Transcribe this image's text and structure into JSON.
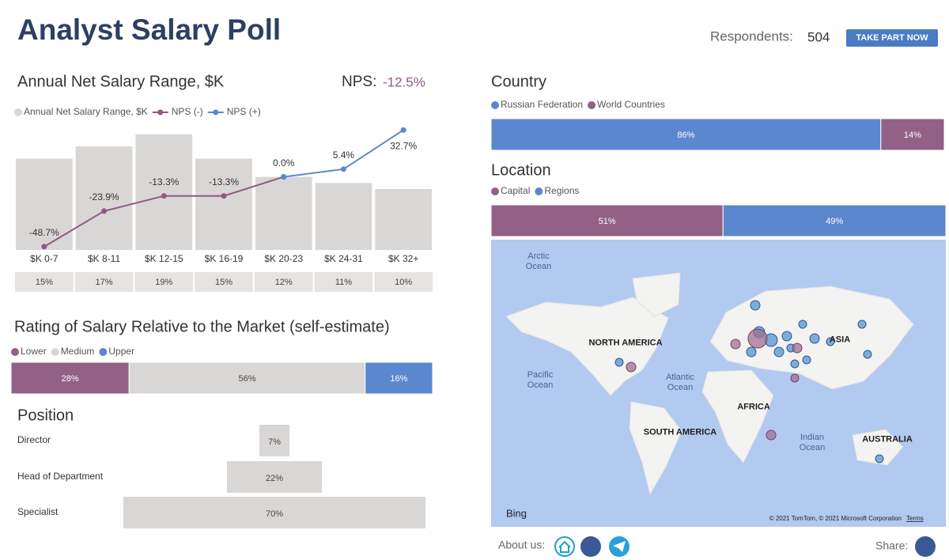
{
  "header": {
    "title": "Analyst Salary Poll",
    "respondents_label": "Respondents:",
    "respondents": "504",
    "button": "TAKE PART NOW"
  },
  "chart_data": [
    {
      "type": "bar-line",
      "title": "Annual Net Salary Range, $K",
      "nps_label": "NPS:",
      "nps": "-12.5%",
      "categories": [
        "$K 0-7",
        "$K 8-11",
        "$K 12-15",
        "$K 16-19",
        "$K 20-23",
        "$K 24-31",
        "$K 32+"
      ],
      "series": [
        {
          "name": "Annual Net Salary Range, $K",
          "color": "#d9d7d6",
          "values": [
            15,
            17,
            19,
            15,
            12,
            11,
            10
          ],
          "value_labels": [
            "15%",
            "17%",
            "19%",
            "15%",
            "12%",
            "11%",
            "10%"
          ]
        },
        {
          "name": "NPS (-)",
          "color": "#8e5a85",
          "axis": "y2",
          "values": [
            -48.7,
            -23.9,
            -13.3,
            -13.3,
            0.0,
            null,
            null
          ],
          "value_labels": [
            "-48.7%",
            "-23.9%",
            "-13.3%",
            "-13.3%",
            "0.0%",
            null,
            null
          ]
        },
        {
          "name": "NPS (+)",
          "color": "#5b87cf",
          "axis": "y2",
          "values": [
            null,
            null,
            null,
            null,
            0.0,
            5.4,
            32.7
          ],
          "value_labels": [
            null,
            null,
            null,
            null,
            null,
            "5.4%",
            "32.7%"
          ]
        }
      ],
      "ylim": [
        0,
        20
      ],
      "y2lim": [
        -51,
        34
      ]
    },
    {
      "type": "stacked-bar",
      "title": "Rating of Salary Relative to the Market (self-estimate)",
      "xlim": [
        0,
        100
      ],
      "series": [
        {
          "name": "Lower",
          "color": "#936086",
          "values": [
            28
          ],
          "value_labels": [
            "28%"
          ]
        },
        {
          "name": "Medium",
          "color": "#d9d7d6",
          "values": [
            56
          ],
          "value_labels": [
            "56%"
          ]
        },
        {
          "name": "Upper",
          "color": "#5b87cf",
          "values": [
            16
          ],
          "value_labels": [
            "16%"
          ]
        }
      ]
    },
    {
      "type": "funnel",
      "title": "Position",
      "xlim": [
        0,
        100
      ],
      "color": "#d9d7d6",
      "categories": [
        "Director",
        "Head of Department",
        "Specialist"
      ],
      "values": [
        7,
        22,
        70
      ],
      "value_labels": [
        "7%",
        "22%",
        "70%"
      ]
    },
    {
      "type": "stacked-bar",
      "title": "Country",
      "xlim": [
        0,
        100
      ],
      "series": [
        {
          "name": "Russian Federation",
          "color": "#5b87cf",
          "values": [
            86
          ],
          "value_labels": [
            "86%"
          ]
        },
        {
          "name": "World Countries",
          "color": "#936086",
          "values": [
            14
          ],
          "value_labels": [
            "14%"
          ]
        }
      ]
    },
    {
      "type": "stacked-bar",
      "title": "Location",
      "xlim": [
        0,
        100
      ],
      "series": [
        {
          "name": "Capital",
          "color": "#936086",
          "values": [
            51
          ],
          "value_labels": [
            "51%"
          ]
        },
        {
          "name": "Regions",
          "color": "#5b87cf",
          "values": [
            49
          ],
          "value_labels": [
            "49%"
          ]
        }
      ]
    }
  ],
  "map": {
    "labels": [
      "Arctic Ocean",
      "NORTH AMERICA",
      "Pacific Ocean",
      "Atlantic Ocean",
      "SOUTH AMERICA",
      "AFRICA",
      "ASIA",
      "Indian Ocean",
      "AUSTRALIA"
    ],
    "provider": "Bing",
    "attribution": "© 2021 TomTom, © 2021 Microsoft Corporation",
    "terms": "Terms"
  },
  "footer": {
    "about": "About us:",
    "share": "Share:"
  }
}
